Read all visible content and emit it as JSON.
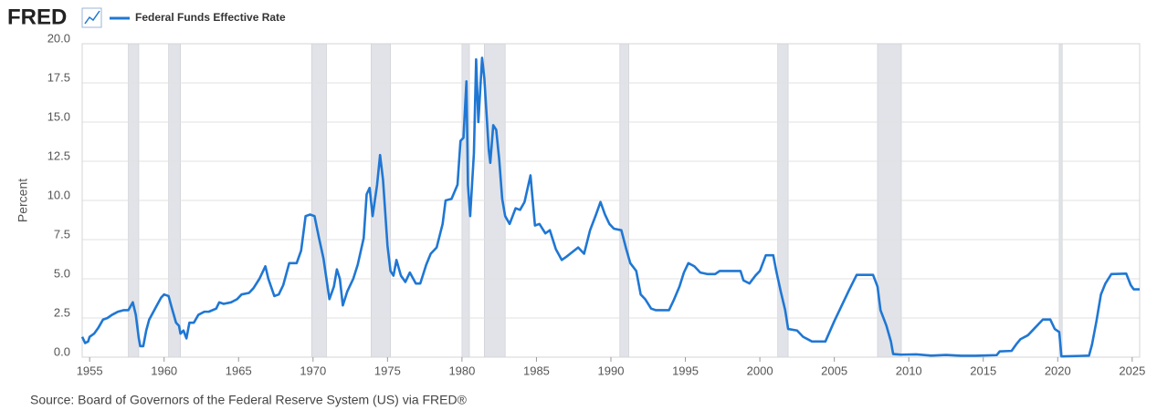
{
  "brand": "FRED",
  "chart_data": {
    "type": "line",
    "ylabel": "Percent",
    "source": "Source: Board of Governors of the Federal Reserve System (US) via FRED®",
    "xlim": [
      1954.5,
      2025.5
    ],
    "xticks": [
      1955,
      1960,
      1965,
      1970,
      1975,
      1980,
      1985,
      1990,
      1995,
      2000,
      2005,
      2010,
      2015,
      2020,
      2025
    ],
    "ylim": [
      0,
      20
    ],
    "yticks": [
      {
        "value": 0,
        "label": "0.0"
      },
      2.5,
      {
        "value": 5,
        "label": "5.0"
      },
      7.5,
      {
        "value": 10,
        "label": "10.0"
      },
      12.5,
      {
        "value": 15,
        "label": "15.0"
      },
      17.5,
      {
        "value": 20,
        "label": "20.0"
      }
    ],
    "grid": true,
    "recession_color": "#e1e3e8",
    "recessions": [
      {
        "start": 1957.6,
        "end": 1958.3
      },
      {
        "start": 1960.3,
        "end": 1961.1
      },
      {
        "start": 1969.9,
        "end": 1970.9
      },
      {
        "start": 1973.9,
        "end": 1975.2
      },
      {
        "start": 1980.0,
        "end": 1980.5
      },
      {
        "start": 1981.5,
        "end": 1982.9
      },
      {
        "start": 1990.6,
        "end": 1991.2
      },
      {
        "start": 2001.2,
        "end": 2001.9
      },
      {
        "start": 2007.9,
        "end": 2009.5
      },
      {
        "start": 2020.1,
        "end": 2020.3
      }
    ],
    "x": [
      1954.5,
      1954.7,
      1954.9,
      1955.0,
      1955.3,
      1955.6,
      1955.9,
      1956.2,
      1956.5,
      1956.9,
      1957.3,
      1957.6,
      1957.9,
      1958.1,
      1958.3,
      1958.4,
      1958.6,
      1958.8,
      1959.0,
      1959.4,
      1959.8,
      1960.0,
      1960.3,
      1960.5,
      1960.8,
      1961.0,
      1961.1,
      1961.3,
      1961.5,
      1961.7,
      1962.0,
      1962.3,
      1962.7,
      1963.0,
      1963.5,
      1963.7,
      1964.0,
      1964.5,
      1964.9,
      1965.2,
      1965.7,
      1966.0,
      1966.4,
      1966.8,
      1967.0,
      1967.4,
      1967.7,
      1968.0,
      1968.4,
      1968.9,
      1969.2,
      1969.5,
      1969.8,
      1970.1,
      1970.4,
      1970.7,
      1970.9,
      1971.1,
      1971.4,
      1971.6,
      1971.8,
      1972.0,
      1972.3,
      1972.7,
      1973.0,
      1973.4,
      1973.6,
      1973.8,
      1974.0,
      1974.3,
      1974.5,
      1974.7,
      1975.0,
      1975.2,
      1975.4,
      1975.6,
      1975.9,
      1976.2,
      1976.5,
      1976.9,
      1977.2,
      1977.6,
      1977.9,
      1978.3,
      1978.7,
      1978.9,
      1979.3,
      1979.7,
      1979.9,
      1980.1,
      1980.3,
      1980.4,
      1980.55,
      1980.8,
      1980.95,
      1981.1,
      1981.35,
      1981.5,
      1981.8,
      1981.9,
      1982.1,
      1982.3,
      1982.5,
      1982.7,
      1982.9,
      1983.2,
      1983.6,
      1983.9,
      1984.2,
      1984.6,
      1984.9,
      1985.2,
      1985.6,
      1985.9,
      1986.3,
      1986.7,
      1987.0,
      1987.4,
      1987.8,
      1988.2,
      1988.6,
      1989.0,
      1989.3,
      1989.6,
      1989.9,
      1990.2,
      1990.7,
      1991.0,
      1991.3,
      1991.7,
      1992.0,
      1992.3,
      1992.7,
      1993.0,
      1993.5,
      1993.9,
      1994.2,
      1994.6,
      1994.9,
      1995.2,
      1995.6,
      1996.0,
      1996.5,
      1997.0,
      1997.3,
      1998.0,
      1998.7,
      1998.9,
      1999.3,
      1999.7,
      2000.0,
      2000.4,
      2000.9,
      2001.1,
      2001.4,
      2001.7,
      2001.9,
      2002.5,
      2002.9,
      2003.5,
      2004.4,
      2005.0,
      2006.0,
      2006.5,
      2007.6,
      2007.9,
      2008.1,
      2008.5,
      2008.8,
      2008.95,
      2009.5,
      2010.5,
      2011.5,
      2012.5,
      2013.5,
      2014.5,
      2015.9,
      2016.1,
      2016.9,
      2017.2,
      2017.5,
      2018.0,
      2018.5,
      2019.0,
      2019.5,
      2019.8,
      2020.1,
      2020.25,
      2021.5,
      2022.1,
      2022.3,
      2022.6,
      2022.9,
      2023.2,
      2023.6,
      2024.6,
      2024.9,
      2025.1,
      2025.5
    ],
    "series": [
      {
        "name": "Federal Funds Effective Rate",
        "color": "#1f77d4",
        "values": [
          1.3,
          0.9,
          1.0,
          1.3,
          1.5,
          1.9,
          2.4,
          2.5,
          2.7,
          2.9,
          3.0,
          3.0,
          3.5,
          2.7,
          1.2,
          0.7,
          0.7,
          1.7,
          2.4,
          3.1,
          3.8,
          4.0,
          3.9,
          3.2,
          2.2,
          2.0,
          1.5,
          1.7,
          1.2,
          2.2,
          2.2,
          2.7,
          2.9,
          2.9,
          3.1,
          3.5,
          3.4,
          3.5,
          3.7,
          4.0,
          4.1,
          4.4,
          5.0,
          5.8,
          5.0,
          3.9,
          4.0,
          4.6,
          6.0,
          6.0,
          6.8,
          9.0,
          9.1,
          9.0,
          7.6,
          6.3,
          5.0,
          3.7,
          4.5,
          5.6,
          5.0,
          3.3,
          4.2,
          5.0,
          5.9,
          7.6,
          10.4,
          10.8,
          9.0,
          11.0,
          12.9,
          11.3,
          7.1,
          5.5,
          5.2,
          6.2,
          5.2,
          4.8,
          5.4,
          4.7,
          4.7,
          5.9,
          6.6,
          7.0,
          8.5,
          10.0,
          10.1,
          11.0,
          13.8,
          14.0,
          17.6,
          11.0,
          9.0,
          13.0,
          19.0,
          15.0,
          19.1,
          17.8,
          13.2,
          12.4,
          14.8,
          14.5,
          12.6,
          10.1,
          9.0,
          8.5,
          9.5,
          9.4,
          9.9,
          11.6,
          8.4,
          8.5,
          7.9,
          8.1,
          6.9,
          6.2,
          6.4,
          6.7,
          7.0,
          6.6,
          8.1,
          9.1,
          9.9,
          9.1,
          8.5,
          8.2,
          8.1,
          7.0,
          6.0,
          5.5,
          4.0,
          3.7,
          3.1,
          3.0,
          3.0,
          3.0,
          3.6,
          4.5,
          5.4,
          6.0,
          5.8,
          5.4,
          5.3,
          5.3,
          5.5,
          5.5,
          5.5,
          4.9,
          4.7,
          5.2,
          5.5,
          6.5,
          6.5,
          5.5,
          4.2,
          3.0,
          1.8,
          1.7,
          1.3,
          1.0,
          1.0,
          2.3,
          4.3,
          5.25,
          5.25,
          4.5,
          3.0,
          2.0,
          1.0,
          0.2,
          0.16,
          0.18,
          0.1,
          0.14,
          0.09,
          0.09,
          0.13,
          0.37,
          0.4,
          0.8,
          1.15,
          1.4,
          1.9,
          2.4,
          2.4,
          1.8,
          1.6,
          0.05,
          0.08,
          0.1,
          0.8,
          2.3,
          4.0,
          4.7,
          5.3,
          5.33,
          4.6,
          4.33,
          4.33
        ]
      }
    ]
  }
}
